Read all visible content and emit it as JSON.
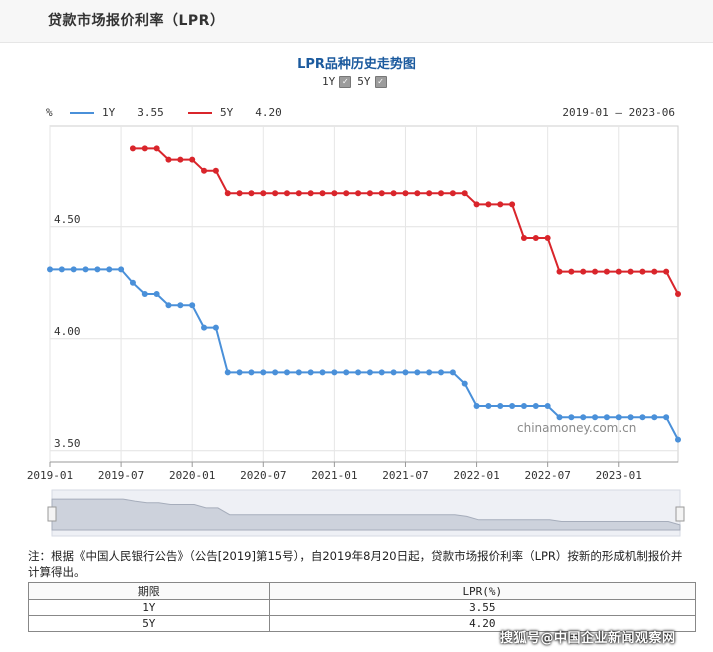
{
  "page": {
    "title": "贷款市场报价利率（LPR）",
    "chart_heading": "LPR品种历史走势图",
    "toggles": [
      {
        "label": "1Y",
        "checked": true
      },
      {
        "label": "5Y",
        "checked": true
      }
    ],
    "unit": "%",
    "date_range": "2019-01 – 2023-06",
    "legend": [
      {
        "name": "1Y",
        "latest": "3.55",
        "color": "#4a90d9"
      },
      {
        "name": "5Y",
        "latest": "4.20",
        "color": "#d9252b"
      }
    ],
    "watermark_text": "chinamoney.com.cn",
    "note": "注：根据《中国人民银行公告》（公告[2019]第15号），自2019年8月20日起，贷款市场报价利率（LPR）按新的形成机制报价并计算得出。",
    "table": {
      "headers": [
        "期限",
        "LPR(%)"
      ],
      "rows": [
        [
          "1Y",
          "3.55"
        ],
        [
          "5Y",
          "4.20"
        ]
      ]
    },
    "corner_watermark": "搜狐号@中国企业新闻观察网"
  },
  "chart_data": {
    "type": "line",
    "title": "LPR品种历史走势图",
    "ylabel": "%",
    "ylim": [
      3.45,
      4.95
    ],
    "y_ticks": [
      3.5,
      4.0,
      4.5
    ],
    "y_tick_labels": [
      "3.50",
      "4.00",
      "4.50"
    ],
    "x_tick_labels": [
      "2019-01",
      "2019-07",
      "2020-01",
      "2020-07",
      "2021-01",
      "2021-07",
      "2022-01",
      "2022-07",
      "2023-01"
    ],
    "grid": true,
    "legend_position": "top-left",
    "x": [
      "2019-01",
      "2019-02",
      "2019-03",
      "2019-04",
      "2019-05",
      "2019-06",
      "2019-07",
      "2019-08",
      "2019-09",
      "2019-10",
      "2019-11",
      "2019-12",
      "2020-01",
      "2020-02",
      "2020-03",
      "2020-04",
      "2020-05",
      "2020-06",
      "2020-07",
      "2020-08",
      "2020-09",
      "2020-10",
      "2020-11",
      "2020-12",
      "2021-01",
      "2021-02",
      "2021-03",
      "2021-04",
      "2021-05",
      "2021-06",
      "2021-07",
      "2021-08",
      "2021-09",
      "2021-10",
      "2021-11",
      "2021-12",
      "2022-01",
      "2022-02",
      "2022-03",
      "2022-04",
      "2022-05",
      "2022-06",
      "2022-07",
      "2022-08",
      "2022-09",
      "2022-10",
      "2022-11",
      "2022-12",
      "2023-01",
      "2023-02",
      "2023-03",
      "2023-04",
      "2023-05",
      "2023-06"
    ],
    "series": [
      {
        "name": "1Y",
        "color": "#4a90d9",
        "values": [
          4.31,
          4.31,
          4.31,
          4.31,
          4.31,
          4.31,
          4.31,
          4.25,
          4.2,
          4.2,
          4.15,
          4.15,
          4.15,
          4.05,
          4.05,
          3.85,
          3.85,
          3.85,
          3.85,
          3.85,
          3.85,
          3.85,
          3.85,
          3.85,
          3.85,
          3.85,
          3.85,
          3.85,
          3.85,
          3.85,
          3.85,
          3.85,
          3.85,
          3.85,
          3.85,
          3.8,
          3.7,
          3.7,
          3.7,
          3.7,
          3.7,
          3.7,
          3.7,
          3.65,
          3.65,
          3.65,
          3.65,
          3.65,
          3.65,
          3.65,
          3.65,
          3.65,
          3.65,
          3.55
        ]
      },
      {
        "name": "5Y",
        "color": "#d9252b",
        "values": [
          null,
          null,
          null,
          null,
          null,
          null,
          null,
          4.85,
          4.85,
          4.85,
          4.8,
          4.8,
          4.8,
          4.75,
          4.75,
          4.65,
          4.65,
          4.65,
          4.65,
          4.65,
          4.65,
          4.65,
          4.65,
          4.65,
          4.65,
          4.65,
          4.65,
          4.65,
          4.65,
          4.65,
          4.65,
          4.65,
          4.65,
          4.65,
          4.65,
          4.65,
          4.6,
          4.6,
          4.6,
          4.6,
          4.45,
          4.45,
          4.45,
          4.3,
          4.3,
          4.3,
          4.3,
          4.3,
          4.3,
          4.3,
          4.3,
          4.3,
          4.3,
          4.2
        ]
      }
    ]
  }
}
